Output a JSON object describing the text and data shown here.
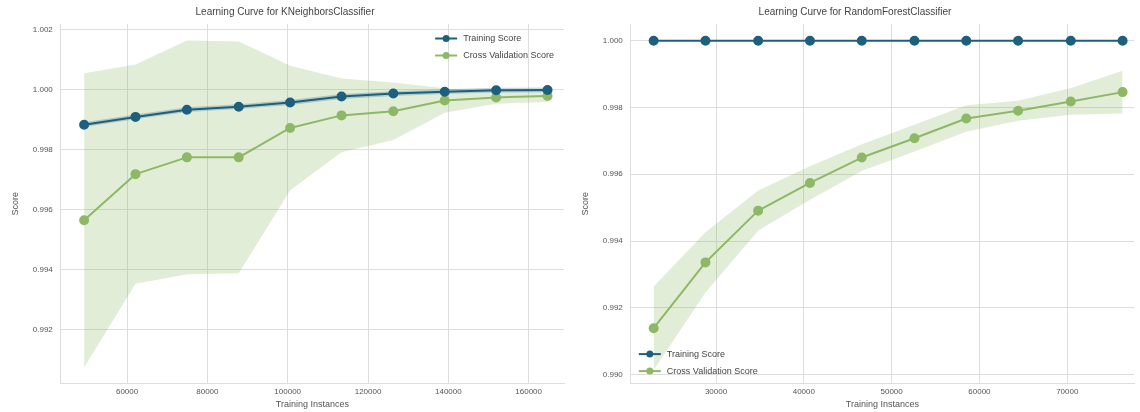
{
  "chart_data": [
    {
      "type": "line",
      "title": "Learning Curve for KNeighborsClassifier",
      "xlabel": "Training Instances",
      "ylabel": "Score",
      "x": [
        49300,
        62100,
        74900,
        87800,
        100600,
        113400,
        126300,
        139100,
        151900,
        164700
      ],
      "series": [
        {
          "name": "Training Score",
          "color": "#1f5f7e",
          "values": [
            0.99884,
            0.9991,
            0.99934,
            0.99944,
            0.99958,
            0.99978,
            0.99988,
            0.99994,
            0.99999,
            1.0
          ],
          "lower": [
            0.99876,
            0.99902,
            0.99926,
            0.99936,
            0.9995,
            0.9997,
            0.9998,
            0.99986,
            0.99991,
            0.99992
          ],
          "upper": [
            0.99892,
            0.99918,
            0.99942,
            0.99952,
            0.99966,
            0.99986,
            0.99996,
            1.00002,
            1.00007,
            1.00008
          ]
        },
        {
          "name": "Cross Validation Score",
          "color": "#8db865",
          "values": [
            0.99565,
            0.99719,
            0.99775,
            0.99775,
            0.99873,
            0.99915,
            0.99929,
            0.99965,
            0.99975,
            0.9998
          ],
          "lower": [
            0.99074,
            0.99353,
            0.99385,
            0.99388,
            0.99665,
            0.99792,
            0.99833,
            0.99924,
            0.99954,
            0.9996
          ],
          "upper": [
            1.00056,
            1.00085,
            1.00165,
            1.00162,
            1.00081,
            1.00038,
            1.00025,
            1.00006,
            0.99996,
            1.0
          ]
        }
      ],
      "xlim": [
        43500,
        168800
      ],
      "xticks": [
        60000,
        80000,
        100000,
        120000,
        140000,
        160000
      ],
      "ylim": [
        0.9902,
        1.0022
      ],
      "yticks": [
        {
          "value": 0.992,
          "label": "0.992"
        },
        {
          "value": 0.994,
          "label": "0.994"
        },
        {
          "value": 0.996,
          "label": "0.996"
        },
        {
          "value": 0.998,
          "label": "0.998"
        },
        {
          "value": 1.0,
          "label": "1.000"
        },
        {
          "value": 1.002,
          "label": "1.002"
        }
      ],
      "grid": true,
      "legend": "top right",
      "marker": "circle",
      "line_style": "solid"
    },
    {
      "type": "line",
      "title": "Learning Curve for RandomForestClassifier",
      "xlabel": "Training Instances",
      "ylabel": "Score",
      "x": [
        22900,
        28800,
        34800,
        40700,
        46600,
        52600,
        58500,
        64400,
        70400,
        76300
      ],
      "series": [
        {
          "name": "Training Score",
          "color": "#1f5f7e",
          "values": [
            1.0,
            1.0,
            1.0,
            1.0,
            1.0,
            1.0,
            1.0,
            1.0,
            1.0,
            1.0
          ]
        },
        {
          "name": "Cross Validation Score",
          "color": "#8db865",
          "values": [
            0.99139,
            0.99336,
            0.99491,
            0.99574,
            0.9965,
            0.99708,
            0.99767,
            0.9979,
            0.99818,
            0.99846
          ],
          "lower": [
            0.99014,
            0.99246,
            0.99431,
            0.99524,
            0.9961,
            0.99668,
            0.99727,
            0.9976,
            0.99778,
            0.99782
          ],
          "upper": [
            0.99264,
            0.99426,
            0.99551,
            0.99624,
            0.9969,
            0.99748,
            0.99807,
            0.9982,
            0.99858,
            0.9991
          ]
        }
      ],
      "xlim": [
        20300,
        77600
      ],
      "xticks": [
        30000,
        40000,
        50000,
        60000,
        70000
      ],
      "ylim": [
        0.98973,
        1.0005
      ],
      "yticks": [
        {
          "value": 0.99,
          "label": "0.990"
        },
        {
          "value": 0.992,
          "label": "0.992"
        },
        {
          "value": 0.994,
          "label": "0.994"
        },
        {
          "value": 0.996,
          "label": "0.996"
        },
        {
          "value": 0.998,
          "label": "0.998"
        },
        {
          "value": 1.0,
          "label": "1.000"
        }
      ],
      "grid": true,
      "legend": "bottom left",
      "marker": "circle",
      "line_style": "solid"
    }
  ]
}
